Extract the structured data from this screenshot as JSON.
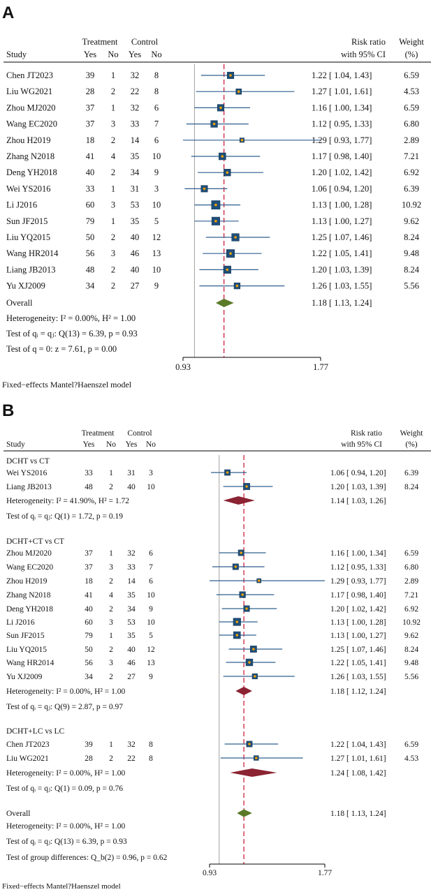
{
  "colors": {
    "box": "#1f4e79",
    "box_edge": "#16385a",
    "ci_line": "#2f5f8f",
    "center_dot": "#f0a000",
    "diamond_overall": "#5a7a28",
    "diamond_subgroup": "#8b2332",
    "ref_line": "#c8102e",
    "null_line": "#a0a0a0",
    "text": "#111111"
  },
  "panel_a": {
    "label": "A",
    "headers": {
      "treatment": "Treatment",
      "control": "Control",
      "study": "Study",
      "yes1": "Yes",
      "no1": "No",
      "yes2": "Yes",
      "no2": "No",
      "rr1": "Risk ratio",
      "rr2": "with 95% CI",
      "w1": "Weight",
      "w2": "(%)"
    },
    "overall": {
      "label": "Overall",
      "rr": 1.18,
      "lo": 1.13,
      "hi": 1.24,
      "ci_text": "1.18 [  1.13,  1.24]"
    },
    "stats": [
      "Heterogeneity: I² = 0.00%, H² = 1.00",
      "Test of qᵢ = qⱼ: Q(13) = 6.39, p = 0.93",
      "Test of q = 0: z = 7.61, p = 0.00"
    ],
    "axis": {
      "min": 0.93,
      "max": 1.77,
      "labels": [
        "0.93",
        "1.77"
      ]
    },
    "footer": "Fixed−effects Mantel?Haenszel model"
  },
  "panel_b": {
    "label": "B",
    "headers": {
      "treatment": "Treatment",
      "control": "Control",
      "study": "Study",
      "yes1": "Yes",
      "no1": "No",
      "yes2": "Yes",
      "no2": "No",
      "rr1": "Risk ratio",
      "rr2": "with 95% CI",
      "w1": "Weight",
      "w2": "(%)"
    },
    "groups": [
      {
        "title": "DCHT vs CT",
        "studies": [
          "Wei YS2016",
          "Liang JB2013"
        ],
        "subtotal": {
          "rr": 1.14,
          "lo": 1.03,
          "hi": 1.26,
          "ci_text": "1.14 [  1.03,  1.26]"
        },
        "heterogeneity": "Heterogeneity: I² = 41.90%, H² = 1.72",
        "test": "Test of qᵢ = qⱼ: Q(1) = 1.72, p = 0.19"
      },
      {
        "title": "DCHT+CT vs CT",
        "studies": [
          "Zhou MJ2020",
          "Wang EC2020",
          "Zhou H2019",
          "Zhang N2018",
          "Deng YH2018",
          "Li J2016",
          "Sun JF2015",
          "Liu YQ2015",
          "Wang HR2014",
          "Yu XJ2009"
        ],
        "subtotal": {
          "rr": 1.18,
          "lo": 1.12,
          "hi": 1.24,
          "ci_text": "1.18 [  1.12,  1.24]"
        },
        "heterogeneity": "Heterogeneity: I² = 0.00%, H² = 1.00",
        "test": "Test of qᵢ = qⱼ: Q(9) = 2.87, p = 0.97"
      },
      {
        "title": "DCHT+LC vs LC",
        "studies": [
          "Chen JT2023",
          "Liu WG2021"
        ],
        "subtotal": {
          "rr": 1.24,
          "lo": 1.08,
          "hi": 1.42,
          "ci_text": "1.24 [  1.08,  1.42]"
        },
        "heterogeneity": "Heterogeneity: I² = 0.00%, H² = 1.00",
        "test": "Test of qᵢ = qⱼ: Q(1) = 0.09, p = 0.76"
      }
    ],
    "overall": {
      "label": "Overall",
      "rr": 1.18,
      "lo": 1.13,
      "hi": 1.24,
      "ci_text": "1.18 [  1.13,  1.24]",
      "heterogeneity": "Heterogeneity: I² = 0.00%, H² = 1.00",
      "test": "Test of qᵢ = qⱼ: Q(13) = 6.39, p = 0.93",
      "group_diff": "Test of group differences: Q_b(2) = 0.96, p = 0.62"
    },
    "axis": {
      "min": 0.93,
      "max": 1.77,
      "labels": [
        "0.93",
        "1.77"
      ]
    },
    "footer": "Fixed−effects Mantel?Haenszel model"
  },
  "chart_data": {
    "type": "forest",
    "measure": "Risk ratio with 95% CI",
    "model": "Fixed-effects Mantel-Haenszel",
    "null_value": 1.0,
    "x_range": [
      0.93,
      1.77
    ],
    "studies": [
      {
        "name": "Chen JT2023",
        "t_yes": 39,
        "t_no": 1,
        "c_yes": 32,
        "c_no": 8,
        "rr": 1.22,
        "lo": 1.04,
        "hi": 1.43,
        "ci_text": "1.22 [  1.04,  1.43]",
        "weight": "6.59"
      },
      {
        "name": "Liu WG2021",
        "t_yes": 28,
        "t_no": 2,
        "c_yes": 22,
        "c_no": 8,
        "rr": 1.27,
        "lo": 1.01,
        "hi": 1.61,
        "ci_text": "1.27 [  1.01,  1.61]",
        "weight": "4.53"
      },
      {
        "name": "Zhou MJ2020",
        "t_yes": 37,
        "t_no": 1,
        "c_yes": 32,
        "c_no": 6,
        "rr": 1.16,
        "lo": 1.0,
        "hi": 1.34,
        "ci_text": "1.16 [  1.00,  1.34]",
        "weight": "6.59"
      },
      {
        "name": "Wang EC2020",
        "t_yes": 37,
        "t_no": 3,
        "c_yes": 33,
        "c_no": 7,
        "rr": 1.12,
        "lo": 0.95,
        "hi": 1.33,
        "ci_text": "1.12 [  0.95,  1.33]",
        "weight": "6.80"
      },
      {
        "name": "Zhou H2019",
        "t_yes": 18,
        "t_no": 2,
        "c_yes": 14,
        "c_no": 6,
        "rr": 1.29,
        "lo": 0.93,
        "hi": 1.77,
        "ci_text": "1.29 [  0.93,  1.77]",
        "weight": "2.89"
      },
      {
        "name": "Zhang N2018",
        "t_yes": 41,
        "t_no": 4,
        "c_yes": 35,
        "c_no": 10,
        "rr": 1.17,
        "lo": 0.98,
        "hi": 1.4,
        "ci_text": "1.17 [  0.98,  1.40]",
        "weight": "7.21"
      },
      {
        "name": "Deng YH2018",
        "t_yes": 40,
        "t_no": 2,
        "c_yes": 34,
        "c_no": 9,
        "rr": 1.2,
        "lo": 1.02,
        "hi": 1.42,
        "ci_text": "1.20 [  1.02,  1.42]",
        "weight": "6.92"
      },
      {
        "name": "Wei YS2016",
        "t_yes": 33,
        "t_no": 1,
        "c_yes": 31,
        "c_no": 3,
        "rr": 1.06,
        "lo": 0.94,
        "hi": 1.2,
        "ci_text": "1.06 [  0.94,  1.20]",
        "weight": "6.39"
      },
      {
        "name": "Li J2016",
        "t_yes": 60,
        "t_no": 3,
        "c_yes": 53,
        "c_no": 10,
        "rr": 1.13,
        "lo": 1.0,
        "hi": 1.28,
        "ci_text": "1.13 [  1.00,  1.28]",
        "weight": "10.92"
      },
      {
        "name": "Sun JF2015",
        "t_yes": 79,
        "t_no": 1,
        "c_yes": 35,
        "c_no": 5,
        "rr": 1.13,
        "lo": 1.0,
        "hi": 1.27,
        "ci_text": "1.13 [  1.00,  1.27]",
        "weight": "9.62"
      },
      {
        "name": "Liu YQ2015",
        "t_yes": 50,
        "t_no": 2,
        "c_yes": 40,
        "c_no": 12,
        "rr": 1.25,
        "lo": 1.07,
        "hi": 1.46,
        "ci_text": "1.25 [  1.07,  1.46]",
        "weight": "8.24"
      },
      {
        "name": "Wang HR2014",
        "t_yes": 56,
        "t_no": 3,
        "c_yes": 46,
        "c_no": 13,
        "rr": 1.22,
        "lo": 1.05,
        "hi": 1.41,
        "ci_text": "1.22 [  1.05,  1.41]",
        "weight": "9.48"
      },
      {
        "name": "Liang JB2013",
        "t_yes": 48,
        "t_no": 2,
        "c_yes": 40,
        "c_no": 10,
        "rr": 1.2,
        "lo": 1.03,
        "hi": 1.39,
        "ci_text": "1.20 [  1.03,  1.39]",
        "weight": "8.24"
      },
      {
        "name": "Yu XJ2009",
        "t_yes": 34,
        "t_no": 2,
        "c_yes": 27,
        "c_no": 9,
        "rr": 1.26,
        "lo": 1.03,
        "hi": 1.55,
        "ci_text": "1.26 [  1.03,  1.55]",
        "weight": "5.56"
      }
    ]
  }
}
